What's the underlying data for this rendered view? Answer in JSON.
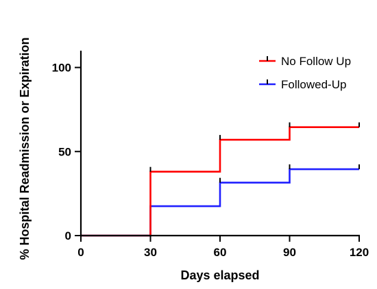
{
  "chart_data": {
    "type": "line",
    "step": true,
    "xlabel": "Days elapsed",
    "ylabel": "% Hospital Readmission or Expiration",
    "xlim": [
      0,
      120
    ],
    "ylim": [
      0,
      110
    ],
    "xticks": [
      0,
      30,
      60,
      90,
      120
    ],
    "yticks": [
      0,
      50,
      100
    ],
    "grid": false,
    "legend_position": "top-right",
    "series": [
      {
        "name": "No Follow Up",
        "color": "#ff0000",
        "x": [
          0,
          30,
          60,
          90,
          120
        ],
        "y": [
          0,
          38,
          57,
          64.5,
          64.5
        ]
      },
      {
        "name": "Followed-Up",
        "color": "#1f1fff",
        "x": [
          0,
          30,
          60,
          90,
          120
        ],
        "y": [
          0,
          17.5,
          31.5,
          39.5,
          39.5
        ]
      }
    ]
  }
}
